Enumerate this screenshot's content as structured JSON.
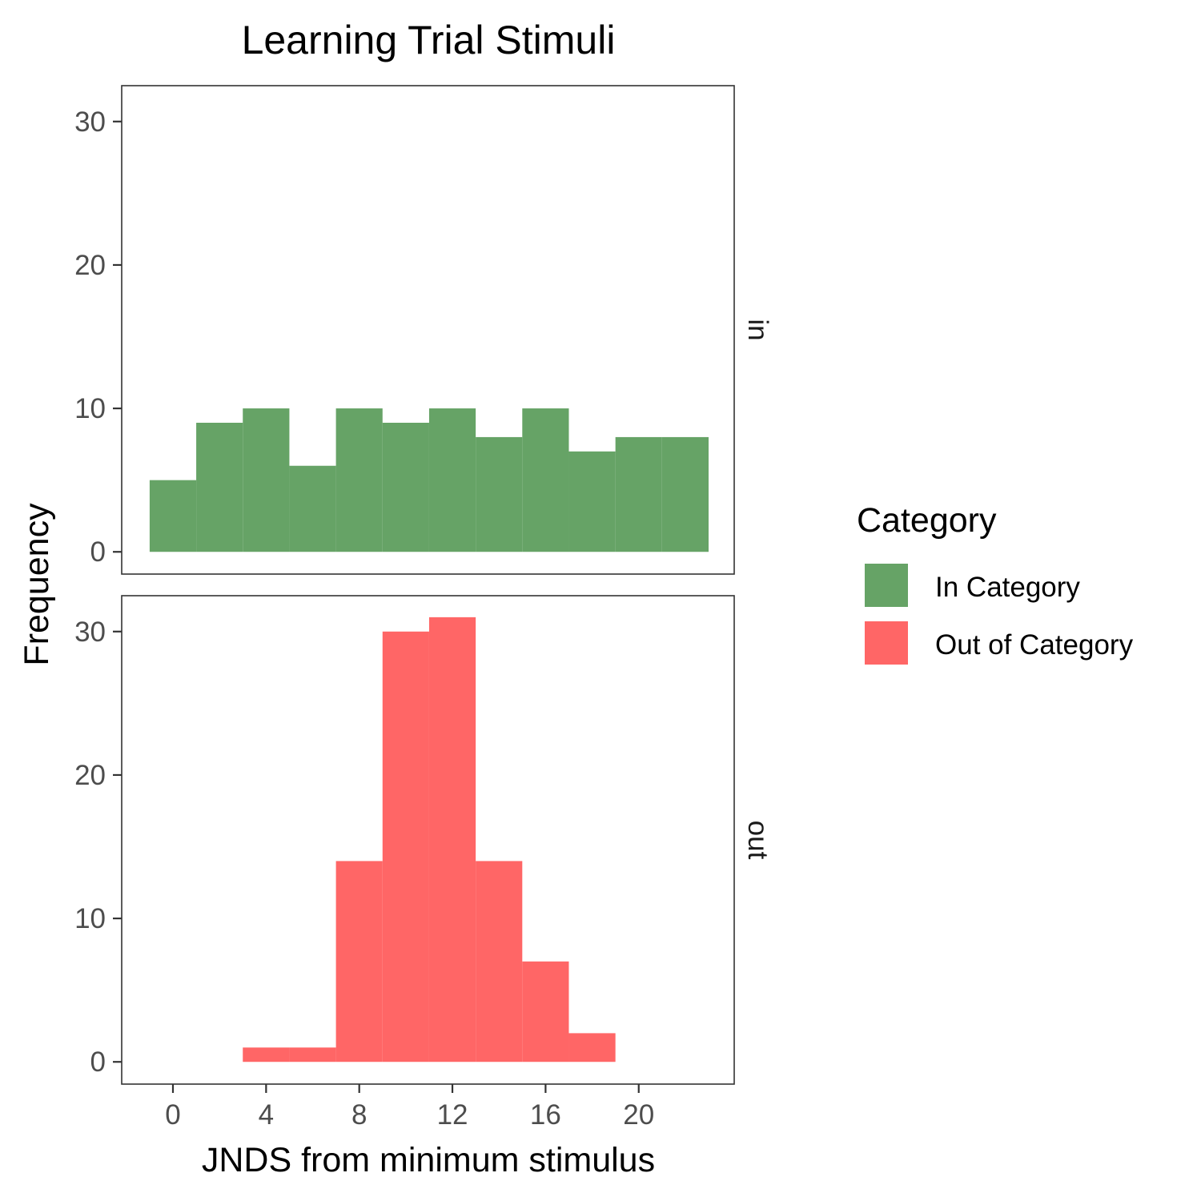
{
  "chart_data": {
    "type": "bar",
    "title": "Learning Trial Stimuli",
    "xlabel": "JNDS from minimum stimulus",
    "ylabel": "Frequency",
    "xlim": [
      -2.2,
      24.1
    ],
    "ylim": [
      -1.55,
      32.5
    ],
    "x_ticks": [
      0,
      4,
      8,
      12,
      16,
      20
    ],
    "y_ticks": [
      0,
      10,
      20,
      30
    ],
    "bin_width": 2,
    "bin_centers": [
      0,
      2,
      4,
      6,
      8,
      10,
      12,
      14,
      16,
      18,
      20,
      22
    ],
    "grid": false,
    "legend": {
      "title": "Category",
      "position": "right",
      "entries": [
        {
          "label": "In Category",
          "color": "#66a366"
        },
        {
          "label": "Out of Category",
          "color": "#ff6666"
        }
      ]
    },
    "facets": [
      {
        "strip": "in",
        "series": "In Category",
        "color": "#66a366",
        "values": [
          5,
          9,
          10,
          6,
          10,
          9,
          10,
          8,
          10,
          7,
          8,
          8
        ]
      },
      {
        "strip": "out",
        "series": "Out of Category",
        "color": "#ff6666",
        "values": [
          0,
          0,
          1,
          1,
          14,
          30,
          31,
          14,
          7,
          2,
          0,
          0
        ]
      }
    ]
  }
}
